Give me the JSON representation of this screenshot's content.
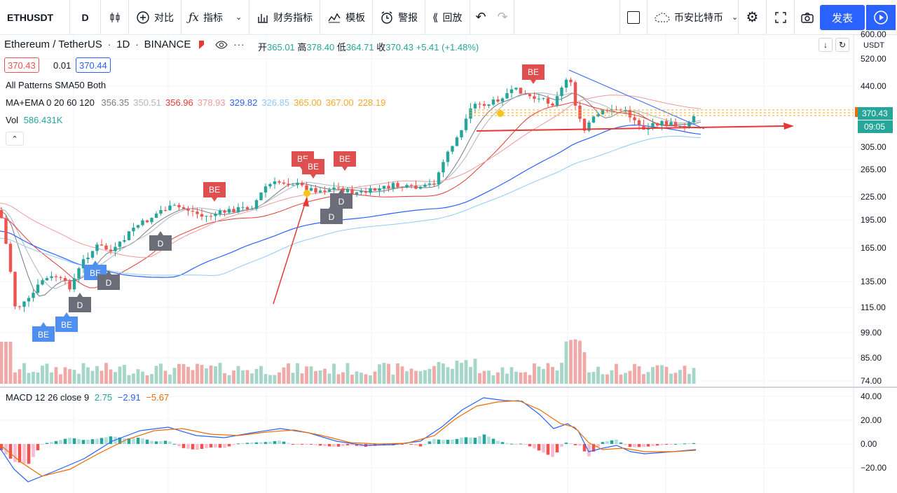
{
  "toolbar": {
    "symbol": "ETHUSDT",
    "interval": "D",
    "compare": "对比",
    "indicators": "指标",
    "financials": "财务指标",
    "templates": "模板",
    "alert": "警报",
    "replay": "回放",
    "exchange": "币安比特币",
    "publish": "发表"
  },
  "legend": {
    "title": "Ethereum / TetherUS",
    "interval": "1D",
    "exchange": "BINANCE",
    "open_label": "开",
    "open": "365.01",
    "high_label": "高",
    "high": "378.40",
    "low_label": "低",
    "low": "364.71",
    "close_label": "收",
    "close": "370.43",
    "change": "+5.41 (+1.48%)",
    "bid": "370.43",
    "spread": "0.01",
    "ask": "370.44"
  },
  "indicators": {
    "patterns": "All Patterns SMA50 Both",
    "ma_label": "MA+EMA 0 20 60 120",
    "ma_values": [
      "356.35",
      "350.51",
      "356.96",
      "378.93",
      "329.82",
      "326.85",
      "365.00",
      "367.00",
      "228.19"
    ],
    "ma_colors": [
      "#787b86",
      "#b2b5be",
      "#e53935",
      "#ef9a9a",
      "#2962ff",
      "#90caf9",
      "#f9a825",
      "#f9a825",
      "#f9a825"
    ],
    "vol_label": "Vol",
    "vol_value": "586.431K",
    "macd_label": "MACD 12 26 close 9",
    "macd_values": [
      "2.75",
      "−2.91",
      "−5.67"
    ]
  },
  "price_axis": {
    "currency": "USDT",
    "ticks": [
      "600.00",
      "520.00",
      "440.00",
      "305.00",
      "265.00",
      "225.00",
      "195.00",
      "165.00",
      "135.00",
      "115.00",
      "99.00",
      "85.00",
      "74.00"
    ],
    "current_price": "370.43",
    "countdown": "09:05"
  },
  "macd_axis": {
    "ticks": [
      "40.00",
      "20.00",
      "0.00",
      "−20.00"
    ]
  },
  "markers": {
    "be": "BE",
    "d": "D"
  },
  "colors": {
    "up": "#26a69a",
    "down": "#ef5350",
    "accent": "#2962ff",
    "arrow": "#e53935"
  }
}
